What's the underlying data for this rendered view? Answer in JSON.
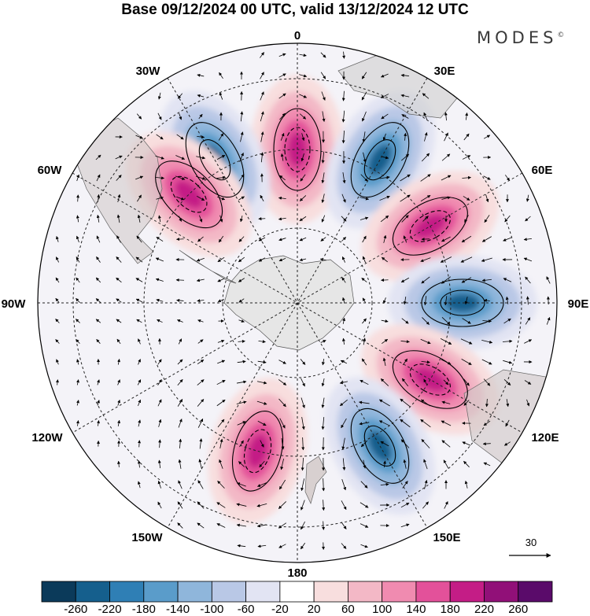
{
  "title": "Base 09/12/2024 00 UTC, valid 13/12/2024 12 UTC",
  "brand": "MODES",
  "brand_mark": "©",
  "map": {
    "projection": "south-polar-stereographic",
    "lon_labels": {
      "top": "0",
      "top_right": "30E",
      "right_upper": "60E",
      "right": "90E",
      "right_lower": "120E",
      "bottom_right": "150E",
      "bottom": "180",
      "bottom_left": "150W",
      "left_lower": "120W",
      "left": "90W",
      "left_upper": "60W",
      "top_left": "30W"
    },
    "reference_vector_label": "30",
    "anomaly_centers": [
      {
        "lon": 0,
        "sign": "positive"
      },
      {
        "lon": 30,
        "sign": "negative"
      },
      {
        "lon": 60,
        "sign": "positive"
      },
      {
        "lon": 90,
        "sign": "negative"
      },
      {
        "lon": 120,
        "sign": "positive"
      },
      {
        "lon": 150,
        "sign": "negative"
      },
      {
        "lon": -165,
        "sign": "positive"
      },
      {
        "lon": -30,
        "sign": "negative"
      },
      {
        "lon": -45,
        "sign": "positive"
      }
    ]
  },
  "colorbar": {
    "labels": [
      "-260",
      "-220",
      "-180",
      "-140",
      "-100",
      "-60",
      "-20",
      "20",
      "60",
      "100",
      "140",
      "180",
      "220",
      "260"
    ],
    "colors": [
      "#0b3a5a",
      "#155f8d",
      "#2f7fb5",
      "#5a9cca",
      "#8fb6db",
      "#b9c8e6",
      "#e2e4f3",
      "#ffffff",
      "#f8dede",
      "#f3b8c6",
      "#f08bb0",
      "#e3519a",
      "#c41d86",
      "#911078",
      "#5a0b6a"
    ]
  }
}
